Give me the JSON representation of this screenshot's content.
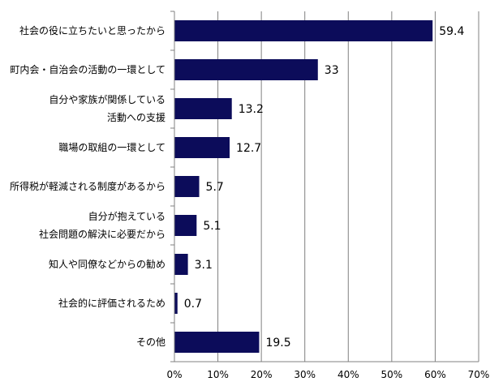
{
  "chart_data": {
    "type": "bar",
    "orientation": "horizontal",
    "categories": [
      [
        "社会の役に立ちたいと思ったから"
      ],
      [
        "町内会・自治会の活動の一環として"
      ],
      [
        "自分や家族が関係している",
        "活動への支援"
      ],
      [
        "職場の取組の一環として"
      ],
      [
        "所得税が軽減される制度があるから"
      ],
      [
        "自分が抱えている",
        "社会問題の解決に必要だから"
      ],
      [
        "知人や同僚などからの勧め"
      ],
      [
        "社会的に評価されるため"
      ],
      [
        "その他"
      ]
    ],
    "values": [
      59.4,
      33,
      13.2,
      12.7,
      5.7,
      5.1,
      3.1,
      0.7,
      19.5
    ],
    "value_labels": [
      "59.4",
      "33",
      "13.2",
      "12.7",
      "5.7",
      "5.1",
      "3.1",
      "0.7",
      "19.5"
    ],
    "xlim": [
      0,
      70
    ],
    "xticks": [
      0,
      10,
      20,
      30,
      40,
      50,
      60,
      70
    ],
    "xtick_labels": [
      "0%",
      "10%",
      "20%",
      "30%",
      "40%",
      "50%",
      "60%",
      "70%"
    ],
    "grid": "vertical",
    "legend": "none",
    "colors": {
      "bar": "#0c0c5a",
      "grid": "#808080",
      "axis": "#808080"
    }
  }
}
